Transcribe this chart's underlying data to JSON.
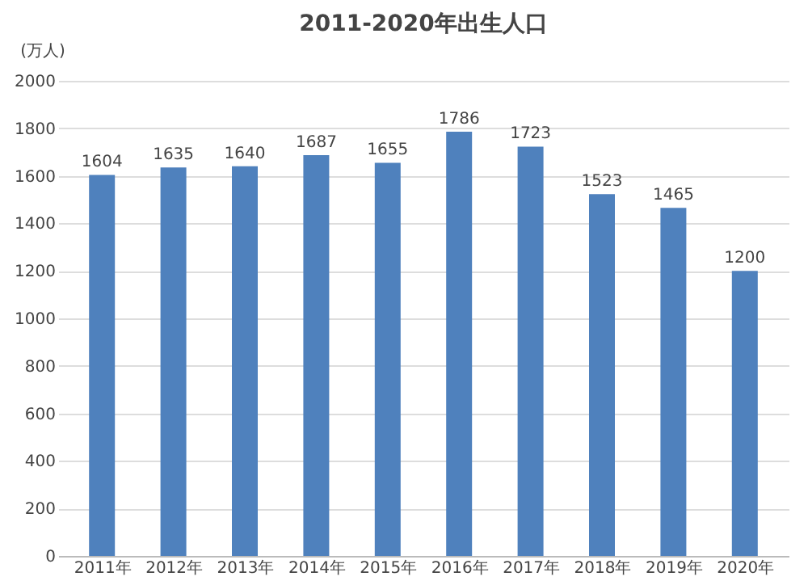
{
  "chart_data": {
    "type": "bar",
    "title": "2011-2020年出生人口",
    "ylabel": "(万人)",
    "categories": [
      "2011年",
      "2012年",
      "2013年",
      "2014年",
      "2015年",
      "2016年",
      "2017年",
      "2018年",
      "2019年",
      "2020年"
    ],
    "values": [
      1604,
      1635,
      1640,
      1687,
      1655,
      1786,
      1723,
      1523,
      1465,
      1200
    ],
    "color": "#4f81bd",
    "ylim": [
      0,
      2000
    ],
    "yticks": [
      0,
      200,
      400,
      600,
      800,
      1000,
      1200,
      1400,
      1600,
      1800,
      2000
    ],
    "grid": "y",
    "data_labels": true
  }
}
